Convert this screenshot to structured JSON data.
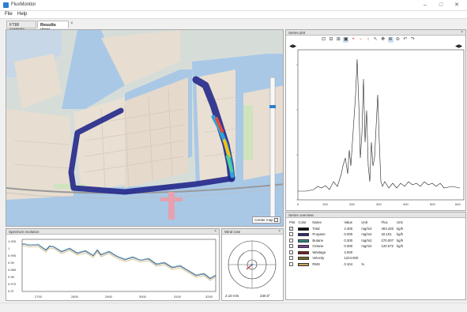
{
  "window": {
    "title": "FluxMonitor"
  },
  "menu": [
    "File",
    "Help"
  ],
  "tabs": [
    "FTIR controls",
    "Results view"
  ],
  "map": {
    "center_map_label": "Center map"
  },
  "series_plot": {
    "title": "Series plot",
    "x_ticks": [
      "0",
      "100",
      "200",
      "300",
      "400",
      "500",
      "600"
    ],
    "y_ticks": [
      "0",
      "0.5",
      "1.0",
      "1.5",
      "2.0",
      "2.5",
      "3.0",
      "3.5",
      "4.0",
      "4.5",
      "5.0"
    ]
  },
  "series_overview": {
    "title": "Series overview",
    "headers": [
      "Plot",
      "Color",
      "Name",
      "Value",
      "Unit",
      "Flux",
      "Unit"
    ],
    "rows": [
      {
        "plot": "✓",
        "color": "#111111",
        "name": "Total",
        "value": "4.300",
        "unit": "mg/m2",
        "flux": "403.420",
        "flux_unit": "kg/h"
      },
      {
        "plot": "",
        "color": "#2b2e7a",
        "name": "Propane",
        "value": "0.000",
        "unit": "mg/m2",
        "flux": "32.101",
        "flux_unit": "kg/h"
      },
      {
        "plot": "",
        "color": "#2f8a88",
        "name": "Butane",
        "value": "0.300",
        "unit": "mg/m2",
        "flux": "270.007",
        "flux_unit": "kg/h"
      },
      {
        "plot": "",
        "color": "#7a3e9a",
        "name": "Octane",
        "value": "0.000",
        "unit": "mg/m2",
        "flux": "120.072",
        "flux_unit": "kg/h"
      },
      {
        "plot": "",
        "color": "#7a1f1f",
        "name": "Wastage",
        "value": "4.000",
        "unit": "",
        "flux": "",
        "flux_unit": ""
      },
      {
        "plot": "",
        "color": "#7a6a1f",
        "name": "Velocity",
        "value": "1224.000",
        "unit": "",
        "flux": "",
        "flux_unit": ""
      },
      {
        "plot": "",
        "color": "#c9a060",
        "name": "RMS",
        "value": "0.104",
        "unit": "%",
        "flux": "",
        "flux_unit": ""
      }
    ]
  },
  "spectrum": {
    "title": "Spectrum evolution",
    "x_ticks": [
      "2700",
      "2800",
      "2900",
      "3000",
      "3100",
      "3200"
    ],
    "y_ticks": [
      "1.005",
      "1",
      "0.995",
      "0.99",
      "0.985",
      "0.98",
      "0.975",
      "0.97"
    ]
  },
  "wind": {
    "title": "Wind rose",
    "speed": "2.10 m/s",
    "direction": "230.0°"
  },
  "colors": {
    "track": "#23288a",
    "accent": "#2d7fd2"
  }
}
